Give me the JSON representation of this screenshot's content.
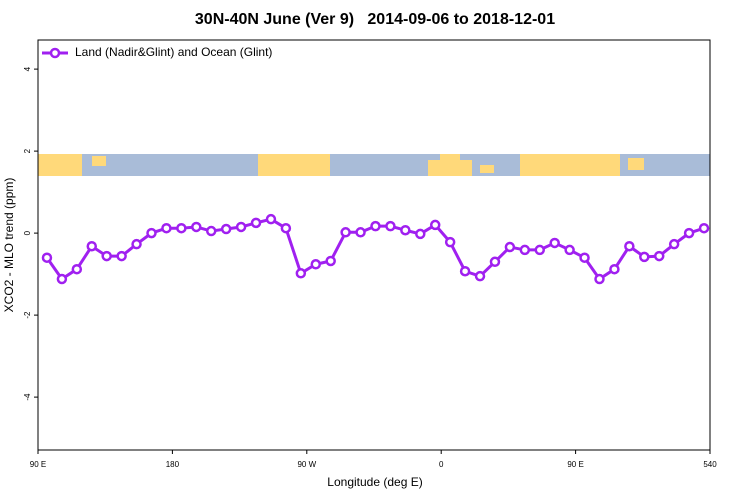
{
  "chart_data": {
    "type": "line",
    "title": "30N-40N June (Ver 9)   2014-09-06 to 2018-12-01",
    "x_label": "Longitude (deg E)",
    "y_label": "XCO2 - MLO trend (ppm)",
    "x": [
      96,
      106,
      116,
      126,
      136,
      146,
      156,
      166,
      176,
      186,
      196,
      206,
      216,
      226,
      236,
      246,
      256,
      266,
      276,
      286,
      296,
      306,
      316,
      326,
      336,
      346,
      356,
      366,
      376,
      386,
      396,
      406,
      416,
      426,
      436,
      446,
      456,
      466,
      476,
      486,
      496,
      506,
      516,
      526,
      536
    ],
    "series": [
      {
        "name": "Land (Nadir&Glint) and Ocean (Glint)",
        "color": "#a020f0",
        "values": [
          -0.6,
          -1.12,
          -0.88,
          -0.32,
          -0.56,
          -0.56,
          -0.27,
          0.0,
          0.12,
          0.12,
          0.15,
          0.05,
          0.1,
          0.15,
          0.25,
          0.34,
          0.12,
          -0.98,
          -0.76,
          -0.68,
          0.02,
          0.02,
          0.17,
          0.17,
          0.07,
          -0.02,
          0.2,
          -0.22,
          -0.93,
          -1.05,
          -0.7,
          -0.34,
          -0.41,
          -0.41,
          -0.24,
          -0.41,
          -0.6,
          -1.12,
          -0.88,
          -0.32,
          -0.58,
          -0.56,
          -0.27,
          0.0,
          0.12
        ]
      }
    ],
    "xlim": [
      90,
      540
    ],
    "xticks": [
      {
        "value": 90,
        "label": "90 E"
      },
      180,
      {
        "value": 270,
        "label": "90 W"
      },
      {
        "value": 360,
        "label": "0"
      },
      {
        "value": 450,
        "label": "90 E"
      },
      540
    ],
    "ylim": [
      -5.29,
      4.71
    ],
    "yticks": [
      -4,
      -2,
      0,
      2,
      4
    ],
    "legend": "top-left"
  }
}
